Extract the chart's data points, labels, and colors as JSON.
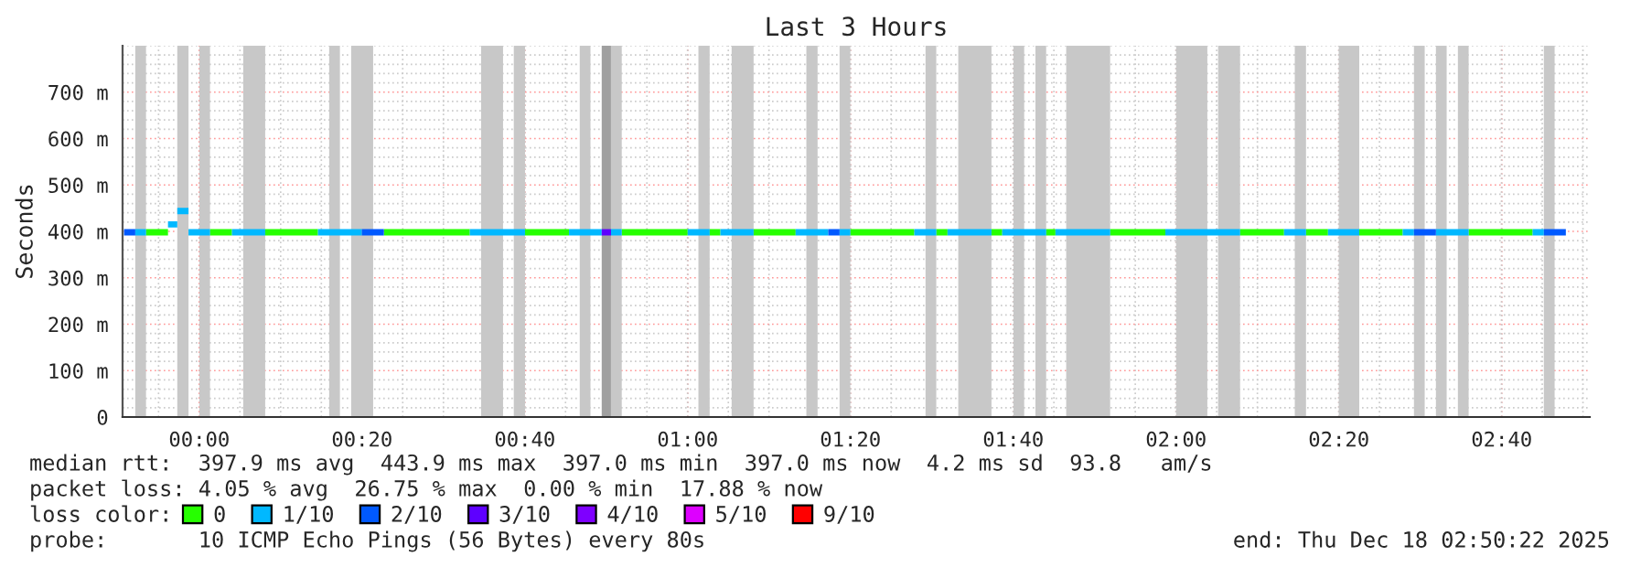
{
  "chart_data": {
    "type": "line",
    "title": "Last 3 Hours",
    "ylabel": "Seconds",
    "legend_title": "loss color:",
    "xlim": [
      -0.157,
      2.847
    ],
    "ylim": [
      0,
      800
    ],
    "xticks": [
      {
        "value": 0,
        "label": "00:00"
      },
      {
        "value": 0.3333,
        "label": "00:20"
      },
      {
        "value": 0.6667,
        "label": "00:40"
      },
      {
        "value": 1,
        "label": "01:00"
      },
      {
        "value": 1.3333,
        "label": "01:20"
      },
      {
        "value": 1.6667,
        "label": "01:40"
      },
      {
        "value": 2,
        "label": "02:00"
      },
      {
        "value": 2.3333,
        "label": "02:20"
      },
      {
        "value": 2.6667,
        "label": "02:40"
      }
    ],
    "yticks": [
      0,
      {
        "value": 100,
        "label": "100 m"
      },
      {
        "value": 200,
        "label": "200 m"
      },
      {
        "value": 300,
        "label": "300 m"
      },
      {
        "value": 400,
        "label": "400 m"
      },
      {
        "value": 500,
        "label": "500 m"
      },
      {
        "value": 600,
        "label": "600 m"
      },
      {
        "value": 700,
        "label": "700 m"
      }
    ],
    "grid": true,
    "legend": "bottom",
    "series": [
      {
        "name": "0",
        "color": "#26ff00",
        "x": [
          -0.109,
          -0.064,
          null,
          0.022,
          0.067,
          null,
          0.135,
          0.243,
          null,
          0.378,
          0.554,
          null,
          0.667,
          0.757,
          null,
          0.865,
          1.0,
          null,
          1.045,
          1.067,
          null,
          1.135,
          1.221,
          null,
          1.333,
          1.464,
          null,
          1.509,
          1.532,
          null,
          1.622,
          1.644,
          null,
          1.734,
          1.753,
          null,
          1.865,
          1.978,
          null,
          2.131,
          2.221,
          null,
          2.266,
          2.311,
          null,
          2.375,
          2.464,
          null,
          2.599,
          2.73
        ],
        "values": [
          398,
          398,
          null,
          398,
          398,
          null,
          398,
          398,
          null,
          398,
          398,
          null,
          398,
          398,
          null,
          398,
          398,
          null,
          398,
          398,
          null,
          398,
          398,
          null,
          398,
          398,
          null,
          398,
          398,
          null,
          398,
          398,
          null,
          398,
          398,
          null,
          398,
          398,
          null,
          398,
          398,
          null,
          398,
          398,
          null,
          398,
          398,
          null,
          398,
          398
        ]
      },
      {
        "name": "1/10",
        "color": "#00b8ff",
        "x": [
          -0.131,
          -0.109,
          null,
          -0.064,
          -0.045,
          null,
          -0.045,
          -0.022,
          null,
          -0.022,
          0.022,
          null,
          0.067,
          0.135,
          null,
          0.243,
          0.333,
          null,
          0.554,
          0.667,
          null,
          0.757,
          0.824,
          null,
          0.843,
          0.865,
          null,
          1.0,
          1.045,
          null,
          1.067,
          1.135,
          null,
          1.221,
          1.288,
          null,
          1.311,
          1.333,
          null,
          1.464,
          1.509,
          null,
          1.532,
          1.622,
          null,
          1.644,
          1.734,
          null,
          1.753,
          1.865,
          null,
          1.978,
          2.131,
          null,
          2.221,
          2.266,
          null,
          2.311,
          2.375,
          null,
          2.464,
          2.487,
          null,
          2.532,
          2.599,
          null,
          2.73,
          2.753
        ],
        "values": [
          398,
          398,
          null,
          415,
          415,
          null,
          444,
          444,
          null,
          398,
          398,
          null,
          398,
          398,
          null,
          398,
          398,
          null,
          398,
          398,
          null,
          398,
          398,
          null,
          398,
          398,
          null,
          398,
          398,
          null,
          398,
          398,
          null,
          398,
          398,
          null,
          398,
          398,
          null,
          398,
          398,
          null,
          398,
          398,
          null,
          398,
          398,
          null,
          398,
          398,
          null,
          398,
          398,
          null,
          398,
          398,
          null,
          398,
          398,
          null,
          398,
          398,
          null,
          398,
          398,
          null,
          398,
          398
        ]
      },
      {
        "name": "2/10",
        "color": "#0059ff",
        "x": [
          -0.154,
          -0.131,
          null,
          0.333,
          0.378,
          null,
          1.288,
          1.311,
          null,
          2.487,
          2.532,
          null,
          2.753,
          2.798
        ],
        "values": [
          398,
          398,
          null,
          398,
          398,
          null,
          398,
          398,
          null,
          398,
          398,
          null,
          398,
          398
        ]
      },
      {
        "name": "3/10",
        "color": "#5e00ff",
        "x": [
          0.824,
          0.843
        ],
        "values": [
          398,
          398
        ]
      },
      {
        "name": "4/10",
        "color": "#7e00ff"
      },
      {
        "name": "5/10",
        "color": "#dd00ff"
      },
      {
        "name": "9/10",
        "color": "#ff0000"
      }
    ],
    "bands": [
      {
        "axis": "x",
        "from": -0.131,
        "to": -0.109,
        "color": "#c8c8c8"
      },
      {
        "axis": "x",
        "from": -0.045,
        "to": -0.022,
        "color": "#c8c8c8"
      },
      {
        "axis": "x",
        "from": 0.0,
        "to": 0.022,
        "color": "#c8c8c8"
      },
      {
        "axis": "x",
        "from": 0.09,
        "to": 0.135,
        "color": "#c8c8c8"
      },
      {
        "axis": "x",
        "from": 0.266,
        "to": 0.288,
        "color": "#c8c8c8"
      },
      {
        "axis": "x",
        "from": 0.311,
        "to": 0.356,
        "color": "#c8c8c8"
      },
      {
        "axis": "x",
        "from": 0.577,
        "to": 0.622,
        "color": "#c8c8c8"
      },
      {
        "axis": "x",
        "from": 0.644,
        "to": 0.667,
        "color": "#c8c8c8"
      },
      {
        "axis": "x",
        "from": 0.779,
        "to": 0.801,
        "color": "#c8c8c8"
      },
      {
        "axis": "x",
        "from": 0.824,
        "to": 0.843,
        "color": "#a0a0a0"
      },
      {
        "axis": "x",
        "from": 0.843,
        "to": 0.865,
        "color": "#c8c8c8"
      },
      {
        "axis": "x",
        "from": 1.022,
        "to": 1.045,
        "color": "#c8c8c8"
      },
      {
        "axis": "x",
        "from": 1.09,
        "to": 1.135,
        "color": "#c8c8c8"
      },
      {
        "axis": "x",
        "from": 1.243,
        "to": 1.266,
        "color": "#c8c8c8"
      },
      {
        "axis": "x",
        "from": 1.311,
        "to": 1.333,
        "color": "#c8c8c8"
      },
      {
        "axis": "x",
        "from": 1.487,
        "to": 1.509,
        "color": "#c8c8c8"
      },
      {
        "axis": "x",
        "from": 1.554,
        "to": 1.622,
        "color": "#c8c8c8"
      },
      {
        "axis": "x",
        "from": 1.667,
        "to": 1.689,
        "color": "#c8c8c8"
      },
      {
        "axis": "x",
        "from": 1.712,
        "to": 1.734,
        "color": "#c8c8c8"
      },
      {
        "axis": "x",
        "from": 1.775,
        "to": 1.865,
        "color": "#c8c8c8"
      },
      {
        "axis": "x",
        "from": 2.0,
        "to": 2.064,
        "color": "#c8c8c8"
      },
      {
        "axis": "x",
        "from": 2.086,
        "to": 2.131,
        "color": "#c8c8c8"
      },
      {
        "axis": "x",
        "from": 2.243,
        "to": 2.266,
        "color": "#c8c8c8"
      },
      {
        "axis": "x",
        "from": 2.333,
        "to": 2.375,
        "color": "#c8c8c8"
      },
      {
        "axis": "x",
        "from": 2.487,
        "to": 2.509,
        "color": "#c8c8c8"
      },
      {
        "axis": "x",
        "from": 2.532,
        "to": 2.554,
        "color": "#c8c8c8"
      },
      {
        "axis": "x",
        "from": 2.577,
        "to": 2.599,
        "color": "#c8c8c8"
      },
      {
        "axis": "x",
        "from": 2.753,
        "to": 2.775,
        "color": "#c8c8c8"
      }
    ],
    "annotations": [
      "median rtt:  397.9 ms avg  443.9 ms max  397.0 ms min  397.0 ms now  4.2 ms sd  93.8   am/s",
      "packet loss: 4.05 % avg  26.75 % max  0.00 % min  17.88 % now",
      "probe:       10 ICMP Echo Pings (56 Bytes) every 80s",
      "end: Thu Dec 18 02:50:22 2025"
    ]
  }
}
